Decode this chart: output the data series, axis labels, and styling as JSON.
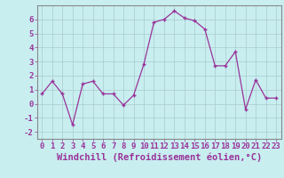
{
  "x": [
    0,
    1,
    2,
    3,
    4,
    5,
    6,
    7,
    8,
    9,
    10,
    11,
    12,
    13,
    14,
    15,
    16,
    17,
    18,
    19,
    20,
    21,
    22,
    23
  ],
  "y": [
    0.7,
    1.6,
    0.7,
    -1.5,
    1.4,
    1.6,
    0.7,
    0.7,
    -0.1,
    0.6,
    2.8,
    5.8,
    6.0,
    6.6,
    6.1,
    5.9,
    5.3,
    2.7,
    2.7,
    3.7,
    -0.4,
    1.7,
    0.4,
    0.4
  ],
  "line_color": "#993399",
  "marker": "+",
  "bg_color": "#c8eef0",
  "grid_color": "#aacccc",
  "xlabel": "Windchill (Refroidissement éolien,°C)",
  "ylim": [
    -2.5,
    7.0
  ],
  "xlim": [
    -0.5,
    23.5
  ],
  "yticks": [
    -2,
    -1,
    0,
    1,
    2,
    3,
    4,
    5,
    6
  ],
  "xticks": [
    0,
    1,
    2,
    3,
    4,
    5,
    6,
    7,
    8,
    9,
    10,
    11,
    12,
    13,
    14,
    15,
    16,
    17,
    18,
    19,
    20,
    21,
    22,
    23
  ],
  "label_color": "#993399",
  "tick_fontsize": 6.5,
  "xlabel_fontsize": 7.5,
  "spine_color": "#888888"
}
